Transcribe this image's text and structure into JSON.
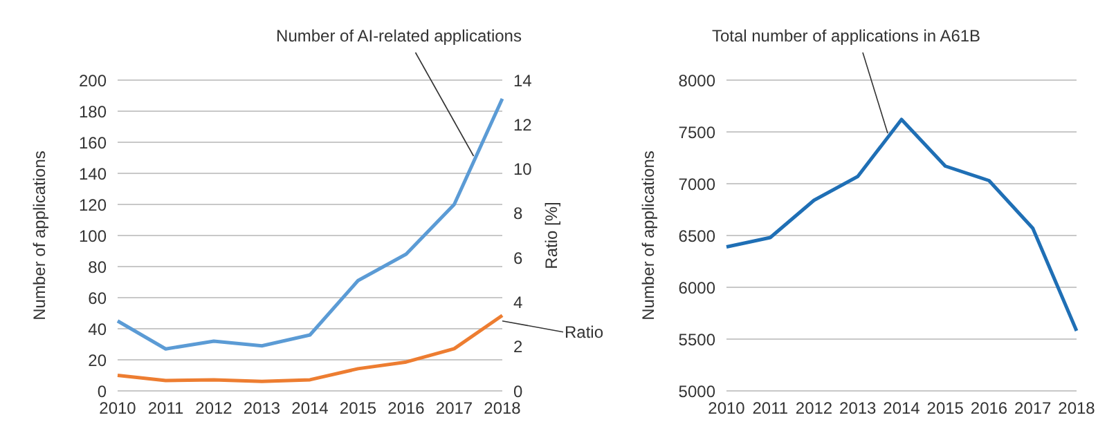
{
  "chart_data": [
    {
      "type": "line",
      "ylabel": "Number of applications",
      "y2label": "Ratio [%]",
      "categories": [
        "2010",
        "2011",
        "2012",
        "2013",
        "2014",
        "2015",
        "2016",
        "2017",
        "2018"
      ],
      "series": [
        {
          "name": "Number of AI-related applications",
          "color": "#5b9bd5",
          "values": [
            45,
            27,
            32,
            29,
            36,
            71,
            88,
            120,
            188
          ]
        },
        {
          "name": "Ratio",
          "color": "#ed7d31",
          "axis": "y2",
          "values": [
            0.7,
            0.47,
            0.5,
            0.43,
            0.5,
            1.0,
            1.3,
            1.9,
            3.4
          ]
        }
      ],
      "ylim": [
        0,
        200
      ],
      "yticks": [
        0,
        20,
        40,
        60,
        80,
        100,
        120,
        140,
        160,
        180,
        200
      ],
      "y2lim": [
        0,
        14
      ],
      "y2ticks": [
        0,
        2,
        4,
        6,
        8,
        10,
        12,
        14
      ],
      "grid": "y",
      "marker": "none"
    },
    {
      "type": "line",
      "ylabel": "Number of applications",
      "categories": [
        "2010",
        "2011",
        "2012",
        "2013",
        "2014",
        "2015",
        "2016",
        "2017",
        "2018"
      ],
      "series": [
        {
          "name": "Total number of applications in A61B",
          "color": "#1f6fb5",
          "values": [
            6390,
            6480,
            6840,
            7070,
            7620,
            7170,
            7030,
            6570,
            5580
          ]
        }
      ],
      "ylim": [
        5000,
        8000
      ],
      "yticks": [
        5000,
        5500,
        6000,
        6500,
        7000,
        7500,
        8000
      ],
      "grid": "y",
      "marker": "none"
    }
  ]
}
